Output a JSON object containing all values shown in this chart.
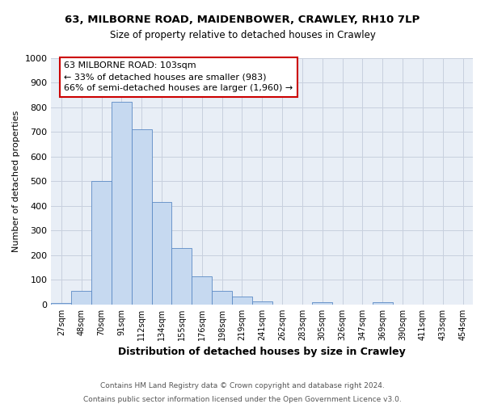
{
  "title1": "63, MILBORNE ROAD, MAIDENBOWER, CRAWLEY, RH10 7LP",
  "title2": "Size of property relative to detached houses in Crawley",
  "xlabel": "Distribution of detached houses by size in Crawley",
  "ylabel": "Number of detached properties",
  "footnote1": "Contains HM Land Registry data © Crown copyright and database right 2024.",
  "footnote2": "Contains public sector information licensed under the Open Government Licence v3.0.",
  "annotation_line1": "63 MILBORNE ROAD: 103sqm",
  "annotation_line2": "← 33% of detached houses are smaller (983)",
  "annotation_line3": "66% of semi-detached houses are larger (1,960) →",
  "bin_labels": [
    "27sqm",
    "48sqm",
    "70sqm",
    "91sqm",
    "112sqm",
    "134sqm",
    "155sqm",
    "176sqm",
    "198sqm",
    "219sqm",
    "241sqm",
    "262sqm",
    "283sqm",
    "305sqm",
    "326sqm",
    "347sqm",
    "369sqm",
    "390sqm",
    "411sqm",
    "433sqm",
    "454sqm"
  ],
  "bar_values": [
    7,
    55,
    500,
    820,
    710,
    415,
    230,
    115,
    55,
    32,
    12,
    0,
    0,
    10,
    0,
    0,
    10,
    0,
    0,
    0,
    0
  ],
  "bar_color": "#c6d9f0",
  "bar_edge_color": "#5b8ac5",
  "annotation_box_color": "#ffffff",
  "annotation_box_edge_color": "#cc0000",
  "ylim": [
    0,
    1000
  ],
  "yticks": [
    0,
    100,
    200,
    300,
    400,
    500,
    600,
    700,
    800,
    900,
    1000
  ],
  "grid_color": "#c8d0de",
  "bg_color": "#e8eef6"
}
